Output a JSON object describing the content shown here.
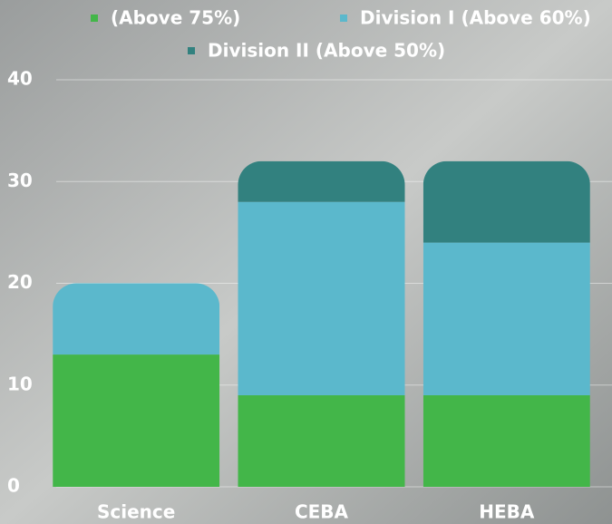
{
  "chart_data": {
    "type": "stacked_bar",
    "categories": [
      "Science",
      "CEBA",
      "HEBA"
    ],
    "series": [
      {
        "name": "(Above 75%)",
        "color": "#43b649",
        "values": [
          13,
          9,
          9
        ]
      },
      {
        "name": "Division I (Above 60%)",
        "color": "#5bb8cc",
        "values": [
          7,
          19,
          15
        ]
      },
      {
        "name": "Division II (Above 50%)",
        "color": "#32817f",
        "values": [
          0,
          4,
          8
        ]
      }
    ],
    "ylim": [
      0,
      40
    ],
    "yticks": [
      0,
      10,
      20,
      30,
      40
    ],
    "grid": true,
    "legend": "top"
  }
}
